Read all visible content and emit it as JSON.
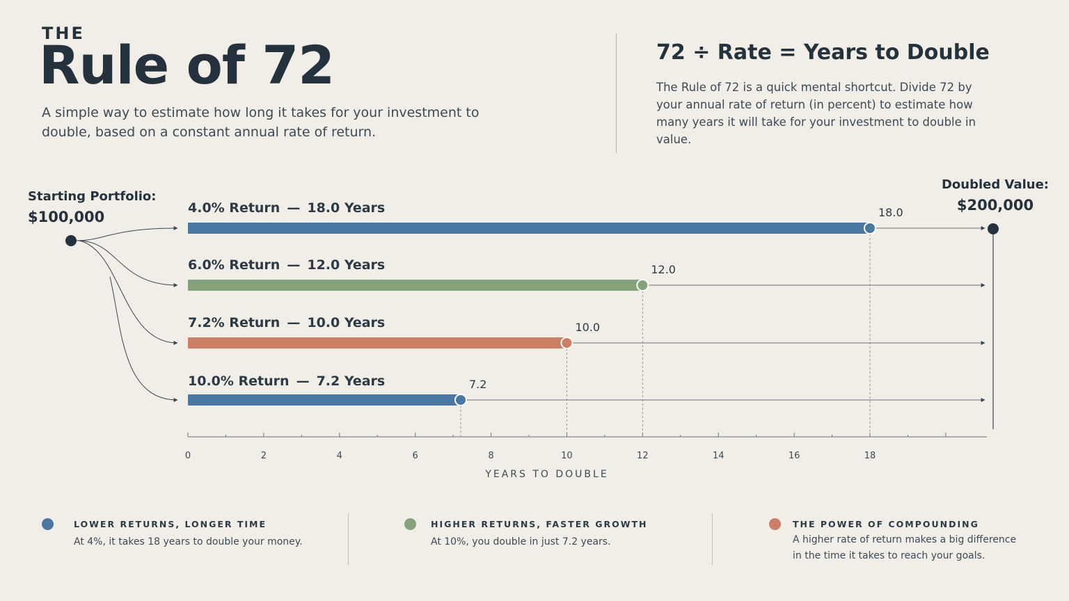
{
  "header": {
    "kicker": "THE",
    "title": "Rule of 72",
    "subtitle": "A simple way to estimate how long it takes for your investment to double, based on a constant annual rate of return."
  },
  "formula": {
    "text": "72 ÷ Rate = Years to Double",
    "description": "The Rule of 72 is a quick mental shortcut. Divide 72 by your annual rate of return (in percent) to estimate how many years it will take for your investment to double in value."
  },
  "start": {
    "label": "Starting Portfolio:",
    "value": "$100,000"
  },
  "end": {
    "label": "Doubled Value:",
    "value": "$200,000"
  },
  "chart_data": {
    "type": "bar",
    "orientation": "horizontal",
    "xlabel": "YEARS TO DOUBLE",
    "xlim": [
      0,
      18
    ],
    "xticks": [
      "0",
      "2",
      "4",
      "6",
      "8",
      "10",
      "12",
      "14",
      "16",
      "18"
    ],
    "series": [
      {
        "rate": "4.0%",
        "years": 18.0,
        "label": "4.0% Return",
        "years_label": "18.0 Years",
        "value_label": "18.0",
        "color": "#4a77a3"
      },
      {
        "rate": "6.0%",
        "years": 12.0,
        "label": "6.0% Return",
        "years_label": "12.0 Years",
        "value_label": "12.0",
        "color": "#84a37a"
      },
      {
        "rate": "7.2%",
        "years": 10.0,
        "label": "7.2% Return",
        "years_label": "10.0 Years",
        "value_label": "10.0",
        "color": "#cc7f64"
      },
      {
        "rate": "10.0%",
        "years": 7.2,
        "label": "10.0% Return",
        "years_label": "7.2 Years",
        "value_label": "7.2",
        "color": "#4a77a3"
      }
    ]
  },
  "legend": [
    {
      "title": "LOWER RETURNS, LONGER TIME",
      "text": "At 4%, it takes 18 years to double your money.",
      "color": "#4a77a3"
    },
    {
      "title": "HIGHER RETURNS, FASTER GROWTH",
      "text": "At 10%, you double in just 7.2 years.",
      "color": "#84a37a"
    },
    {
      "title": "THE POWER OF COMPOUNDING",
      "text": "A higher rate of return makes a big difference in the time it takes to reach your goals.",
      "color": "#cc7f64"
    }
  ]
}
